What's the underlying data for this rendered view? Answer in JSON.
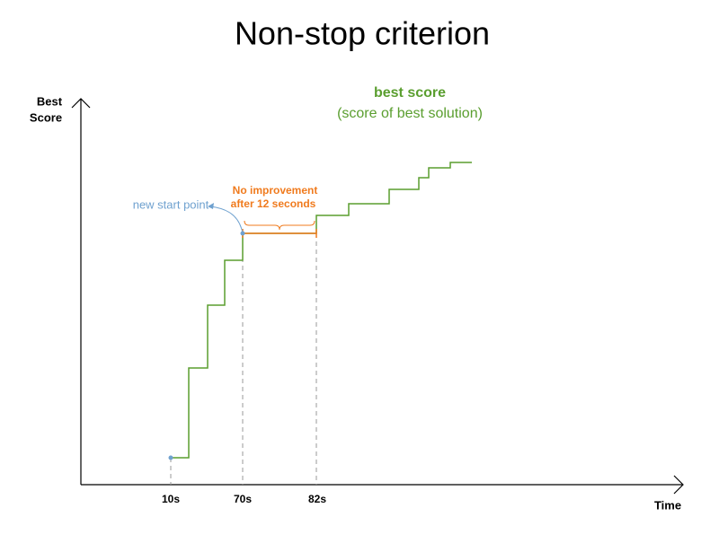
{
  "title": "Non-stop criterion",
  "axes": {
    "y_label": [
      "Best",
      "Score"
    ],
    "x_label": "Time",
    "ticks": [
      "10s",
      "70s",
      "82s"
    ]
  },
  "legend": {
    "title": "best score",
    "subtitle": "(score of best solution)"
  },
  "annotations": {
    "start": "new start point",
    "no_improvement": [
      "No improvement",
      "after 12 seconds"
    ]
  }
}
